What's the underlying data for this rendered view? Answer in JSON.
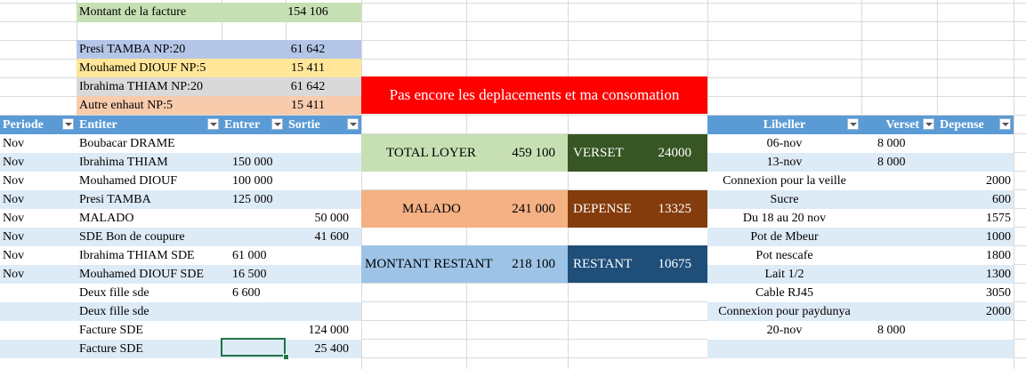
{
  "summary": {
    "facture_label": "Montant de la facture",
    "facture_value": "154 106",
    "shares": [
      {
        "label": "Presi TAMBA NP:20",
        "value": "61 642",
        "color": "#b4c6e7"
      },
      {
        "label": "Mouhamed DIOUF NP:5",
        "value": "15 411",
        "color": "#ffe699"
      },
      {
        "label": "Ibrahima THIAM NP:20",
        "value": "61 642",
        "color": "#d9d9d9"
      },
      {
        "label": "Autre enhaut NP:5",
        "value": "15 411",
        "color": "#f8cbad"
      }
    ]
  },
  "banner": {
    "text": "Pas encore les deplacements et ma consomation",
    "color": "#ff0000"
  },
  "left_table": {
    "headers": {
      "periode": "Periode",
      "entiter": "Entiter",
      "entrer": "Entrer",
      "sortie": "Sortie"
    },
    "rows": [
      {
        "periode": "Nov",
        "entiter": "Boubacar DRAME",
        "entrer": "",
        "sortie": ""
      },
      {
        "periode": "Nov",
        "entiter": "Ibrahima THIAM",
        "entrer": "150 000",
        "sortie": ""
      },
      {
        "periode": "Nov",
        "entiter": "Mouhamed DIOUF",
        "entrer": "100 000",
        "sortie": ""
      },
      {
        "periode": "Nov",
        "entiter": "Presi TAMBA",
        "entrer": "125 000",
        "sortie": ""
      },
      {
        "periode": "Nov",
        "entiter": "MALADO",
        "entrer": "",
        "sortie": "50 000"
      },
      {
        "periode": "Nov",
        "entiter": "SDE Bon de coupure",
        "entrer": "",
        "sortie": "41 600"
      },
      {
        "periode": "Nov",
        "entiter": "Ibrahima THIAM SDE",
        "entrer": "61 000",
        "sortie": ""
      },
      {
        "periode": "Nov",
        "entiter": "Mouhamed DIOUF SDE",
        "entrer": "16 500",
        "sortie": ""
      },
      {
        "periode": "",
        "entiter": "Deux fille sde",
        "entrer": "6 600",
        "sortie": ""
      },
      {
        "periode": "",
        "entiter": "Deux fille sde",
        "entrer": "",
        "sortie": ""
      },
      {
        "periode": "",
        "entiter": "Facture SDE",
        "entrer": "",
        "sortie": "124 000"
      },
      {
        "periode": "",
        "entiter": "Facture SDE",
        "entrer": "",
        "sortie": "25 400"
      }
    ]
  },
  "totals": [
    {
      "label": "TOTAL LOYER",
      "value": "459 100",
      "color": "#c6e0b4",
      "text_color": "#000000"
    },
    {
      "label": "MALADO",
      "value": "241 000",
      "color": "#f4b183",
      "text_color": "#000000"
    },
    {
      "label": "MONTANT RESTANT",
      "value": "218 100",
      "color": "#9dc3e6",
      "text_color": "#000000"
    }
  ],
  "perso": [
    {
      "label": "VERSET",
      "value": "24000",
      "color": "#375623"
    },
    {
      "label": "DEPENSE",
      "value": "13325",
      "color": "#843c0c"
    },
    {
      "label": "RESTANT",
      "value": "10675",
      "color": "#1f4e79"
    }
  ],
  "right_table": {
    "headers": {
      "libeller": "Libeller",
      "verset": "Verset",
      "depense": "Depense"
    },
    "rows": [
      {
        "libeller": "06-nov",
        "verset": "8 000",
        "depense": ""
      },
      {
        "libeller": "13-nov",
        "verset": "8 000",
        "depense": ""
      },
      {
        "libeller": "Connexion pour la veille",
        "verset": "",
        "depense": "2000"
      },
      {
        "libeller": "Sucre",
        "verset": "",
        "depense": "600"
      },
      {
        "libeller": "Du 18 au 20 nov",
        "verset": "",
        "depense": "1575"
      },
      {
        "libeller": "Pot de Mbeur",
        "verset": "",
        "depense": "1000"
      },
      {
        "libeller": "Pot nescafe",
        "verset": "",
        "depense": "1800"
      },
      {
        "libeller": "Lait 1/2",
        "verset": "",
        "depense": "1300"
      },
      {
        "libeller": "Cable RJ45",
        "verset": "",
        "depense": "3050"
      },
      {
        "libeller": "Connexion pour paydunya",
        "verset": "",
        "depense": "2000"
      },
      {
        "libeller": "20-nov",
        "verset": "8 000",
        "depense": ""
      }
    ]
  }
}
